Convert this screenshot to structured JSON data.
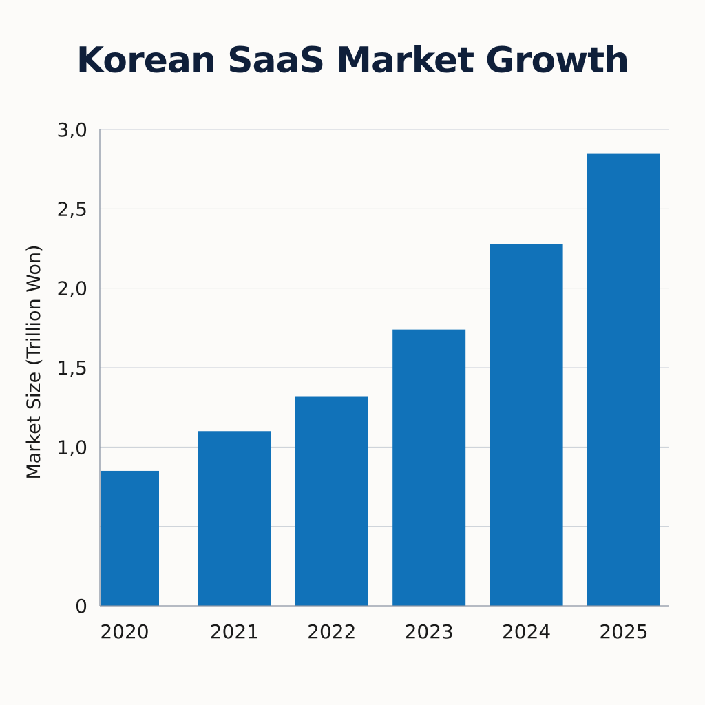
{
  "chart_data": {
    "type": "bar",
    "title": "Korean SaaS Market Growth",
    "xlabel": "",
    "ylabel": "Market Size (Trillion Won)",
    "categories": [
      "2020",
      "2021",
      "2022",
      "2023",
      "2024",
      "2025"
    ],
    "values": [
      0.85,
      1.1,
      1.32,
      1.74,
      2.28,
      2.85
    ],
    "ylim": [
      0,
      3.0
    ],
    "yticks": [
      {
        "value": 0,
        "label": "0"
      },
      {
        "value": 0.5,
        "label": ""
      },
      {
        "value": 1.0,
        "label": "1,0"
      },
      {
        "value": 1.5,
        "label": "1,5"
      },
      {
        "value": 2.0,
        "label": "2,0"
      },
      {
        "value": 2.5,
        "label": "2,5"
      },
      {
        "value": 3.0,
        "label": "3,0"
      }
    ],
    "grid": true,
    "legend": "none",
    "bar_color": "#1172b9"
  }
}
